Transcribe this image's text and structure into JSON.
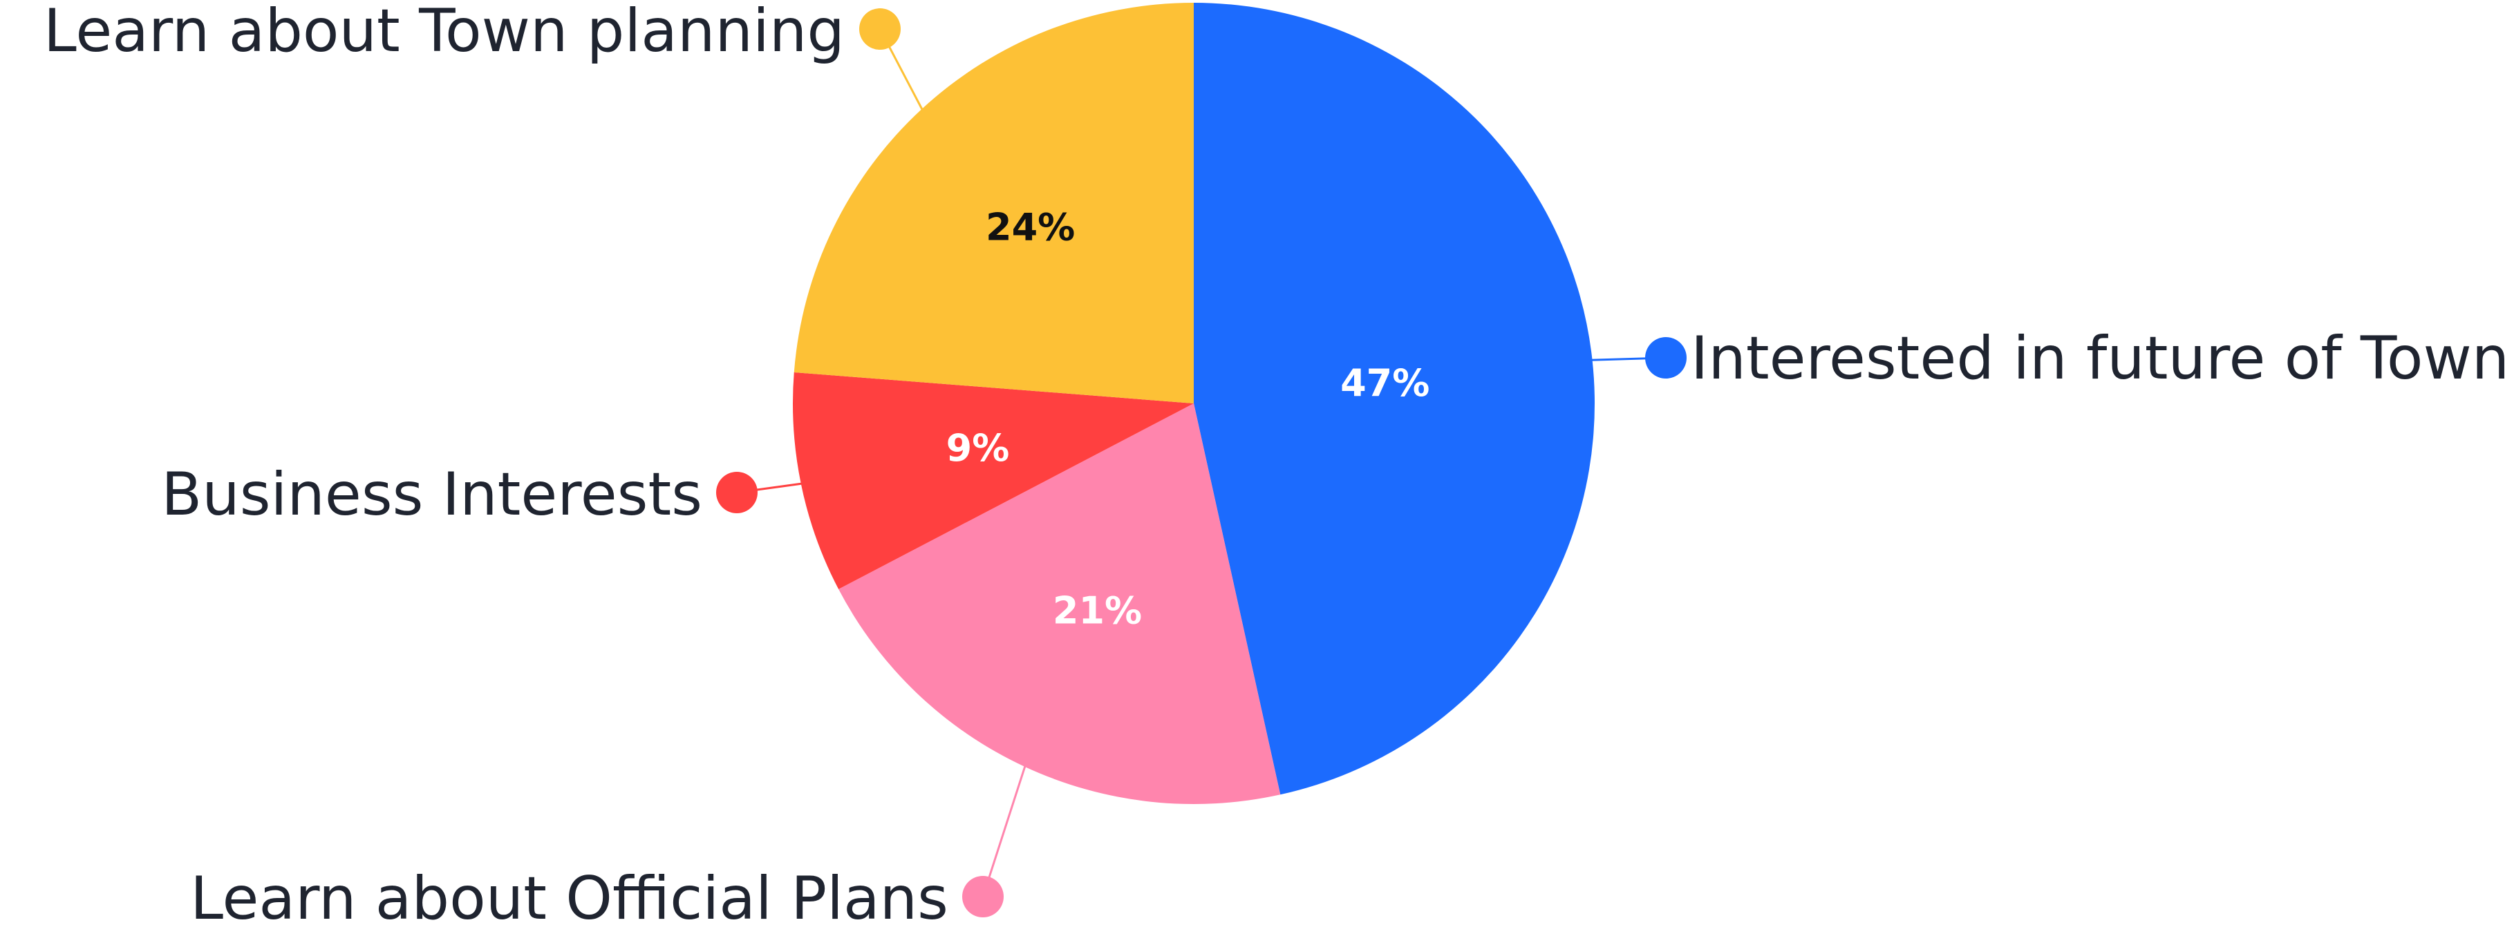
{
  "chart_data": {
    "type": "pie",
    "slices": [
      {
        "label": "Interested in future of Town",
        "value": 47,
        "value_label": "47%",
        "color": "#1c6bfe",
        "text_color": "#ffffff"
      },
      {
        "label": "Learn about Official Plans",
        "value": 21,
        "value_label": "21%",
        "color": "#ff85ad",
        "text_color": "#ffffff"
      },
      {
        "label": "Business Interests",
        "value": 9,
        "value_label": "9%",
        "color": "#ff4040",
        "text_color": "#ffffff"
      },
      {
        "label": "Learn about Town planning",
        "value": 24,
        "value_label": "24%",
        "color": "#fdc136",
        "text_color": "#111111"
      }
    ],
    "legend": "callouts"
  }
}
